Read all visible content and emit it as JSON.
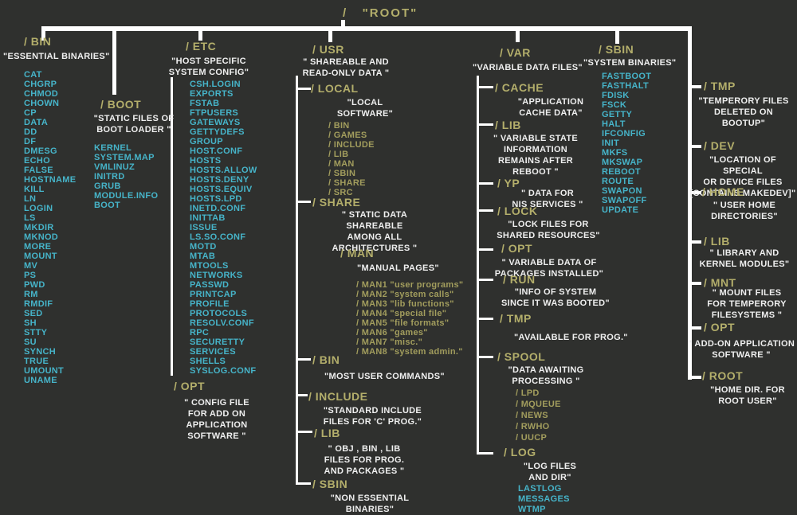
{
  "colors": {
    "bg": "#2f302e",
    "line": "#ffffff",
    "olive": "#b3ae6b",
    "olive_dim": "#a29d5d",
    "cyan": "#46b4c9",
    "white": "#efefef"
  },
  "title": "/   \"ROOT\"",
  "sections": {
    "bin": {
      "header": "/ BIN",
      "desc": "\"ESSENTIAL BINARIES\"",
      "items": [
        "CAT",
        "CHGRP",
        "CHMOD",
        "CHOWN",
        "CP",
        "DATA",
        "DD",
        "DF",
        "DMESG",
        "ECHO",
        "FALSE",
        "HOSTNAME",
        "KILL",
        "LN",
        "LOGIN",
        "LS",
        "MKDIR",
        "MKNOD",
        "MORE",
        "MOUNT",
        "MV",
        "PS",
        "PWD",
        "RM",
        "RMDIF",
        "SED",
        "SH",
        "STTY",
        "SU",
        "SYNCH",
        "TRUE",
        "UMOUNT",
        "UNAME"
      ]
    },
    "boot": {
      "header": "/ BOOT",
      "desc": "\"STATIC FILES OF\nBOOT LOADER \"",
      "items": [
        "KERNEL",
        "SYSTEM.MAP",
        "VMLINUZ",
        "INITRD",
        "GRUB",
        "MODULE.INFO",
        "BOOT"
      ]
    },
    "etc": {
      "header": "/ ETC",
      "desc": "\"HOST SPECIFIC\nSYSTEM CONFIG\"",
      "items": [
        "CSH.LOGIN",
        "EXPORTS",
        "FSTAB",
        "FTPUSERS",
        "GATEWAYS",
        "GETTYDEFS",
        "GROUP",
        "HOST.CONF",
        "HOSTS",
        "HOSTS.ALLOW",
        "HOSTS.DENY",
        "HOSTS.EQUIV",
        "HOSTS.LPD",
        "INETD.CONF",
        "INITTAB",
        "ISSUE",
        "LS.SO.CONF",
        "MOTD",
        "MTAB",
        "MTOOLS",
        "NETWORKS",
        "PASSWD",
        "PRINTCAP",
        "PROFILE",
        "PROTOCOLS",
        "RESOLV.CONF",
        "RPC",
        "SECURETTY",
        "SERVICES",
        "SHELLS",
        "SYSLOG.CONF"
      ]
    },
    "etc_opt": {
      "header": "/ OPT",
      "desc": "\" CONFIG FILE\nFOR ADD ON\nAPPLICATION\nSOFTWARE \""
    },
    "usr": {
      "header": "/ USR",
      "desc": "\" SHAREABLE AND\nREAD-ONLY DATA \""
    },
    "local": {
      "header": "/ LOCAL",
      "desc": "\"LOCAL\nSOFTWARE\"",
      "items": [
        "/ BIN",
        "/ GAMES",
        "/ INCLUDE",
        "/ LIB",
        "/ MAN",
        "/ SBIN",
        "/ SHARE",
        "/ SRC"
      ]
    },
    "share": {
      "header": "/ SHARE",
      "desc": "\" STATIC DATA\nSHAREABLE\nAMONG ALL\nARCHITECTURES \""
    },
    "man": {
      "header": "/ MAN",
      "desc": "\"MANUAL PAGES\"",
      "items": [
        "/ MAN1  \"user programs\"",
        "/ MAN2  \"system calls\"",
        "/ MAN3  \"lib functions\"",
        "/ MAN4  \"special file\"",
        "/ MAN5  \"file formats\"",
        "/ MAN6  \"games\"",
        "/ MAN7  \"misc.\"",
        "/ MAN8  \"system admin.\""
      ]
    },
    "usr_bin": {
      "header": "/ BIN",
      "desc": "\"MOST USER COMMANDS\""
    },
    "include": {
      "header": "/ INCLUDE",
      "desc": "\"STANDARD INCLUDE\nFILES FOR  'C' PROG.\""
    },
    "usr_lib": {
      "header": "/ LIB",
      "desc": "\" OBJ , BIN , LIB\nFILES FOR PROG.\nAND PACKAGES \""
    },
    "usr_sbin": {
      "header": "/ SBIN",
      "desc": "\"NON ESSENTIAL\nBINARIES\""
    },
    "var": {
      "header": "/ VAR",
      "desc": "\"VARIABLE DATA FILES\""
    },
    "cache": {
      "header": "/ CACHE",
      "desc": "\"APPLICATION\nCACHE DATA\""
    },
    "var_lib": {
      "header": "/ LIB",
      "desc": "\" VARIABLE STATE\nINFORMATION\nREMAINS  AFTER\nREBOOT \""
    },
    "yp": {
      "header": "/ YP",
      "desc": "\" DATA FOR\nNIS SERVICES \""
    },
    "lock": {
      "header": "/ LOCK",
      "desc": "\"LOCK FILES FOR\nSHARED RESOURCES\""
    },
    "var_opt": {
      "header": "/ OPT",
      "desc": "\"  VARIABLE DATA OF\nPACKAGES INSTALLED\""
    },
    "run": {
      "header": "/ RUN",
      "desc": "\"INFO OF SYSTEM\nSINCE IT WAS BOOTED\""
    },
    "var_tmp": {
      "header": "/ TMP",
      "desc": "\"AVAILABLE FOR PROG.\""
    },
    "spool": {
      "header": "/ SPOOL",
      "desc": "\"DATA AWAITING\nPROCESSING \"",
      "items": [
        "/ LPD",
        "/ MQUEUE",
        "/ NEWS",
        "/ RWHO",
        "/ UUCP"
      ]
    },
    "log": {
      "header": "/ LOG",
      "desc": "\"LOG FILES\nAND DIR\"",
      "items": [
        "LASTLOG",
        "MESSAGES",
        "WTMP"
      ]
    },
    "sbin": {
      "header": "/ SBIN",
      "desc": "\"SYSTEM BINARIES\"",
      "items": [
        "FASTBOOT",
        "FASTHALT",
        "FDISK",
        "FSCK",
        "GETTY",
        "HALT",
        "IFCONFIG",
        "INIT",
        "MKFS",
        "MKSWAP",
        "REBOOT",
        "ROUTE",
        "SWAPON",
        "SWAPOFF",
        "UPDATE"
      ]
    },
    "r_tmp": {
      "header": "/ TMP",
      "desc": "\"TEMPERORY FILES\nDELETED ON BOOTUP\""
    },
    "r_dev": {
      "header": "/ DEV",
      "desc": "\"LOCATION OF SPECIAL\nOR DEVICE FILES\n[CONTAINS MAKEDEV]\""
    },
    "r_home": {
      "header": "/ HOME",
      "desc": "\" USER HOME\nDIRECTORIES\""
    },
    "r_lib": {
      "header": "/ LIB",
      "desc": "\"  LIBRARY AND\nKERNEL MODULES\""
    },
    "r_mnt": {
      "header": "/ MNT",
      "desc": "\"  MOUNT FILES\nFOR TEMPERORY\nFILESYSTEMS \""
    },
    "r_opt": {
      "header": "/ OPT",
      "desc": "\" ADD-ON APPLICATION\nSOFTWARE \""
    },
    "r_root": {
      "header": "/ ROOT",
      "desc": "\"HOME DIR. FOR\nROOT USER\""
    }
  }
}
